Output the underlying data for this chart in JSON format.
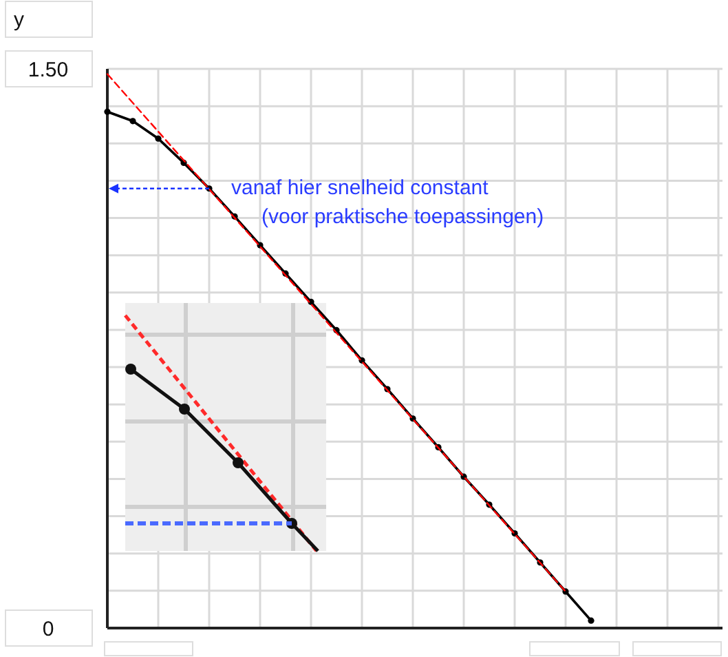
{
  "chart_data": {
    "type": "line",
    "ylabel": "y",
    "categories": [
      null,
      null,
      null,
      null,
      null,
      null,
      null,
      null,
      null,
      null,
      null,
      null,
      null,
      null,
      null,
      null,
      null,
      null,
      null,
      null,
      null,
      null,
      null,
      null,
      null
    ],
    "series": [
      {
        "color": "#000000",
        "marker": "circle",
        "line_style": "solid",
        "values": [
          1.385,
          1.36,
          1.313,
          1.248,
          1.179,
          1.104,
          1.027,
          0.951,
          0.875,
          0.799,
          0.718,
          0.641,
          0.562,
          0.485,
          0.406,
          0.331,
          0.254,
          0.176,
          0.098,
          0.02,
          null,
          null,
          null,
          null,
          null
        ]
      },
      {
        "type": "line",
        "color": "#ff0000",
        "marker": "none",
        "line_style": "dashed",
        "values": [
          1.486,
          null,
          null,
          null,
          null,
          null,
          null,
          null,
          null,
          null,
          null,
          null,
          null,
          null,
          null,
          null,
          null,
          null,
          0.098,
          null,
          null,
          null,
          null,
          null,
          null
        ]
      }
    ],
    "ylim": [
      0,
      1.5
    ],
    "yticks": [
      {
        "value": 0,
        "label": "0"
      },
      {
        "value": 0.1,
        "label": null
      },
      {
        "value": 0.2,
        "label": null
      },
      {
        "value": 0.3,
        "label": null
      },
      {
        "value": 0.4,
        "label": null
      },
      {
        "value": 0.5,
        "label": null
      },
      {
        "value": 0.6,
        "label": null
      },
      {
        "value": 0.7,
        "label": null
      },
      {
        "value": 0.8,
        "label": null
      },
      {
        "value": 0.9,
        "label": null
      },
      {
        "value": 1.0,
        "label": null
      },
      {
        "value": 1.1,
        "label": null
      },
      {
        "value": 1.2,
        "label": null
      },
      {
        "value": 1.3,
        "label": null
      },
      {
        "value": 1.4,
        "label": null
      },
      {
        "value": 1.5,
        "label": "1.50"
      }
    ],
    "tick_labels": "y",
    "grid": true,
    "annotations": [
      "vanaf hier snelheid constant\n(voor praktische toepassingen)"
    ]
  }
}
